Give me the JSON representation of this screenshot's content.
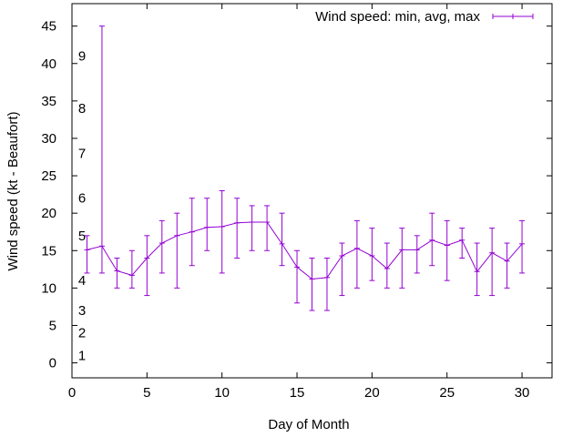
{
  "chart_data": {
    "type": "line",
    "title": "",
    "xlabel": "Day of Month",
    "ylabel": "Wind speed (kt - Beaufort)",
    "xlim": [
      0,
      32
    ],
    "ylim": [
      -2,
      48
    ],
    "x_ticks": [
      "0",
      "5",
      "10",
      "15",
      "20",
      "25",
      "30"
    ],
    "y_ticks": [
      "0",
      "5",
      "10",
      "15",
      "20",
      "25",
      "30",
      "35",
      "40",
      "45"
    ],
    "beaufort_labels": [
      {
        "label": "1",
        "y": 1
      },
      {
        "label": "2",
        "y": 4
      },
      {
        "label": "3",
        "y": 7
      },
      {
        "label": "4",
        "y": 11
      },
      {
        "label": "5",
        "y": 17
      },
      {
        "label": "6",
        "y": 22
      },
      {
        "label": "7",
        "y": 28
      },
      {
        "label": "8",
        "y": 34
      },
      {
        "label": "9",
        "y": 41
      }
    ],
    "legend_position": "top-right",
    "grid": false,
    "series": [
      {
        "name": "Wind speed: min, avg, max",
        "color": "#9400d3",
        "x": [
          1,
          2,
          3,
          4,
          5,
          6,
          7,
          8,
          9,
          10,
          11,
          12,
          13,
          14,
          15,
          16,
          17,
          18,
          19,
          20,
          21,
          22,
          23,
          24,
          25,
          26,
          27,
          28,
          29,
          30
        ],
        "avg": [
          15.1,
          15.6,
          12.3,
          11.7,
          14.0,
          16.0,
          17.0,
          17.5,
          18.1,
          18.2,
          18.7,
          18.8,
          18.8,
          15.9,
          12.8,
          11.2,
          11.4,
          14.3,
          15.3,
          14.3,
          12.6,
          15.1,
          15.1,
          16.4,
          15.7,
          16.4,
          12.2,
          14.7,
          13.6,
          15.9
        ],
        "min": [
          12,
          12,
          10,
          10,
          9,
          12,
          10,
          13,
          15,
          12,
          14,
          15,
          15,
          13,
          8,
          7,
          7,
          9,
          10,
          11,
          10,
          10,
          12,
          13,
          11,
          14,
          9,
          9,
          10,
          12
        ],
        "max": [
          17,
          45,
          14,
          15,
          17,
          19,
          20,
          22,
          22,
          23,
          22,
          21,
          21,
          20,
          15,
          14,
          14,
          16,
          19,
          18,
          16,
          18,
          17,
          20,
          19,
          18,
          16,
          18,
          16,
          19
        ]
      }
    ]
  }
}
